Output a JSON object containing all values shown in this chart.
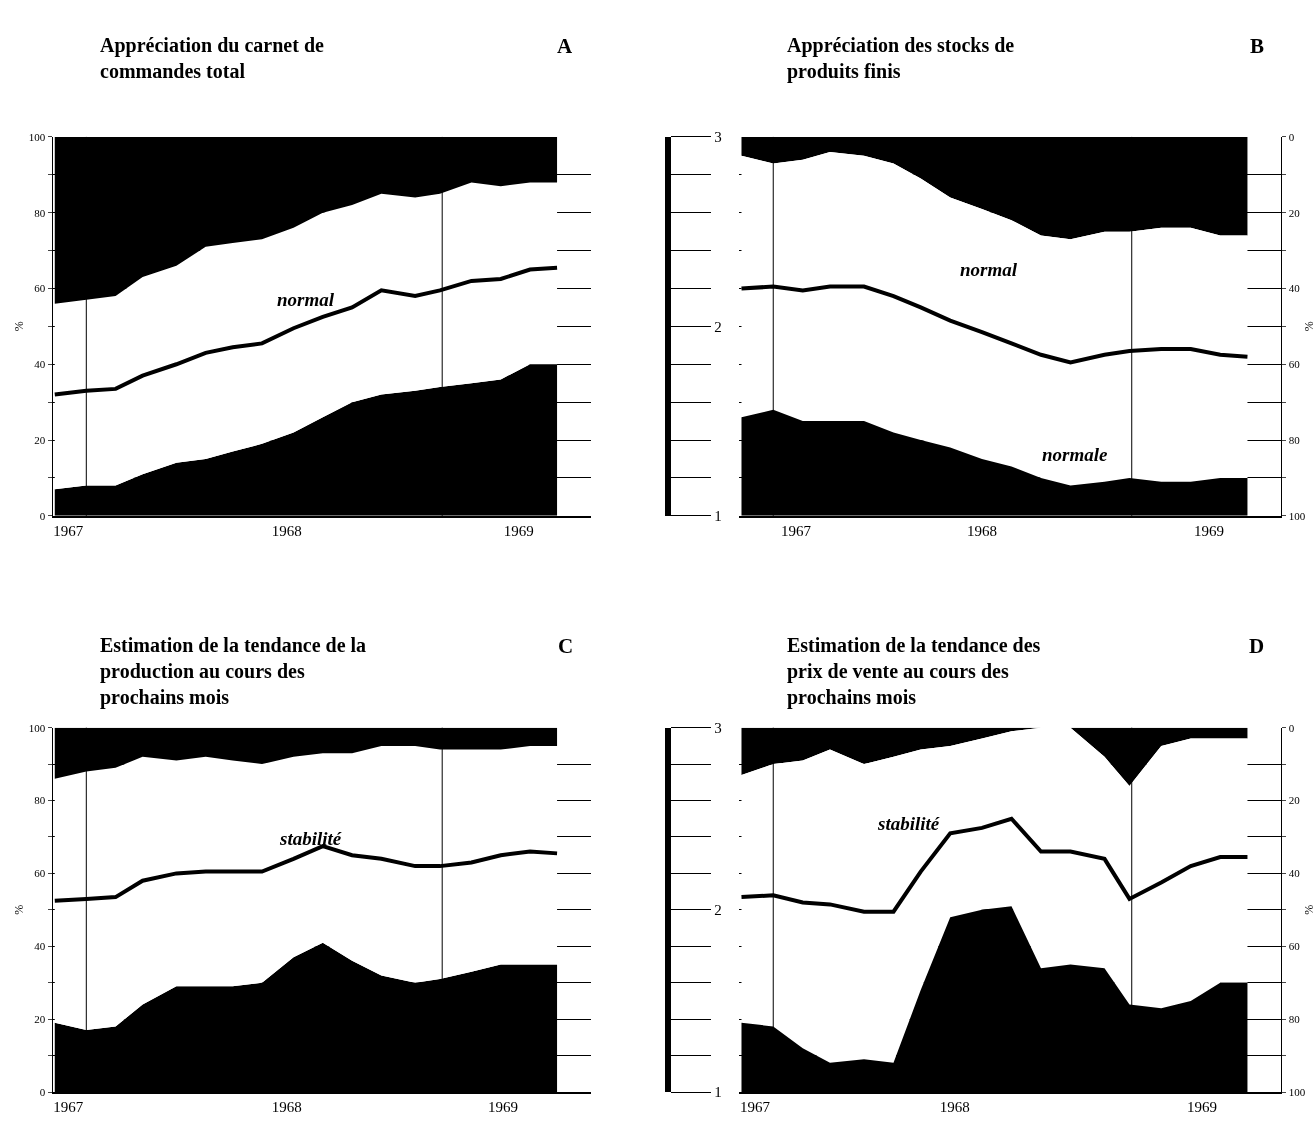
{
  "chart_data": [
    {
      "type": "area",
      "stacked": true,
      "title": "Appréciation du carnet de\ncommandes total",
      "ylabel": "%",
      "x": [
        1966.94,
        1967.08,
        1967.21,
        1967.33,
        1967.48,
        1967.61,
        1967.73,
        1967.86,
        1968.0,
        1968.13,
        1968.26,
        1968.39,
        1968.54,
        1968.65,
        1968.79,
        1968.92,
        1969.05,
        1969.17
      ],
      "series": [
        {
          "color": "#000000",
          "values": [
            7,
            8,
            8,
            11,
            14,
            15,
            17,
            19,
            22,
            26,
            30,
            32,
            33,
            34,
            35,
            36,
            40,
            40
          ]
        },
        {
          "color": "#ffffff",
          "values": [
            49,
            49,
            50,
            52,
            52,
            56,
            55,
            54,
            54,
            54,
            52,
            53,
            51,
            51,
            53,
            51,
            48,
            48
          ]
        },
        {
          "color": "#000000",
          "values": [
            44,
            43,
            42,
            37,
            34,
            29,
            28,
            27,
            24,
            20,
            18,
            15,
            16,
            15,
            12,
            13,
            12,
            12
          ]
        },
        {
          "type": "line",
          "axis": "y2",
          "color": "#000000",
          "values": [
            1.64,
            1.66,
            1.67,
            1.74,
            1.8,
            1.86,
            1.89,
            1.91,
            1.99,
            2.05,
            2.1,
            2.19,
            2.16,
            2.19,
            2.24,
            2.25,
            2.3,
            2.31
          ]
        }
      ],
      "xlim": [
        1966.93,
        1969.32
      ],
      "xticks": [
        1967,
        {
          "value": 1967.97,
          "label": "1968"
        },
        1969
      ],
      "ylim": [
        0,
        100
      ],
      "yticks": [
        0,
        {
          "value": 10,
          "label": null
        },
        20,
        {
          "value": 30,
          "label": null
        },
        40,
        {
          "value": 50,
          "label": null
        },
        60,
        {
          "value": 70,
          "label": null
        },
        80,
        {
          "value": 90,
          "label": null
        },
        100
      ],
      "y2lim": [
        1,
        3
      ],
      "y2ticks": [
        1,
        {
          "value": 1.2,
          "label": null
        },
        {
          "value": 1.4,
          "label": null
        },
        {
          "value": 1.6,
          "label": null
        },
        {
          "value": 1.8,
          "label": null
        },
        2,
        {
          "value": 2.2,
          "label": null
        },
        {
          "value": 2.4,
          "label": null
        },
        {
          "value": 2.6,
          "label": null
        },
        {
          "value": 2.8,
          "label": null
        },
        3
      ],
      "ref_lines": [
        {
          "axis": "x",
          "value": 1967.08
        },
        {
          "axis": "x",
          "value": 1968.66
        }
      ],
      "annotations": [
        "A",
        "normal"
      ],
      "grid": "y",
      "marker": "none",
      "line_style": "solid"
    },
    {
      "type": "area",
      "stacked": true,
      "title": "Appréciation des stocks de\nproduits finis",
      "ylabel": "%",
      "x": [
        1966.94,
        1967.08,
        1967.21,
        1967.33,
        1967.48,
        1967.61,
        1967.73,
        1967.86,
        1968.0,
        1968.13,
        1968.26,
        1968.39,
        1968.54,
        1968.65,
        1968.79,
        1968.92,
        1969.05,
        1969.17
      ],
      "series": [
        {
          "color": "#000000",
          "values": [
            5,
            7,
            6,
            4,
            5,
            7,
            11,
            16,
            19,
            22,
            26,
            27,
            25,
            25,
            24,
            24,
            26,
            26
          ]
        },
        {
          "color": "#ffffff",
          "values": [
            69,
            65,
            69,
            71,
            70,
            71,
            69,
            66,
            66,
            65,
            64,
            65,
            66,
            65,
            67,
            67,
            64,
            64
          ]
        },
        {
          "color": "#000000",
          "values": [
            26,
            28,
            25,
            25,
            25,
            22,
            20,
            18,
            15,
            13,
            10,
            8,
            9,
            10,
            9,
            9,
            10,
            10
          ]
        },
        {
          "type": "line",
          "axis": "y2",
          "color": "#000000",
          "values": [
            2.2,
            2.21,
            2.19,
            2.21,
            2.21,
            2.16,
            2.1,
            2.03,
            1.97,
            1.91,
            1.85,
            1.81,
            1.85,
            1.87,
            1.88,
            1.88,
            1.85,
            1.84
          ]
        }
      ],
      "xlim": [
        1966.93,
        1969.32
      ],
      "xticks": [
        {
          "value": 1967.18,
          "label": "1967"
        },
        1968,
        1969
      ],
      "ylim": [
        100,
        0
      ],
      "yticks": [
        0,
        {
          "value": 10,
          "label": null
        },
        20,
        {
          "value": 30,
          "label": null
        },
        40,
        {
          "value": 50,
          "label": null
        },
        60,
        {
          "value": 70,
          "label": null
        },
        80,
        {
          "value": 90,
          "label": null
        },
        100
      ],
      "y2lim": [
        1,
        3
      ],
      "ref_lines": [
        {
          "axis": "x",
          "value": 1967.08
        },
        {
          "axis": "x",
          "value": 1968.66
        }
      ],
      "annotations": [
        "B",
        "normal",
        "normale"
      ],
      "grid": "y",
      "marker": "none",
      "line_style": "solid"
    },
    {
      "type": "area",
      "stacked": true,
      "title": "Estimation de la tendance de la\nproduction au cours des\nprochains mois",
      "ylabel": "%",
      "x": [
        1966.94,
        1967.08,
        1967.21,
        1967.33,
        1967.48,
        1967.61,
        1967.73,
        1967.86,
        1968.0,
        1968.13,
        1968.26,
        1968.39,
        1968.54,
        1968.65,
        1968.79,
        1968.92,
        1969.05,
        1969.17
      ],
      "series": [
        {
          "color": "#000000",
          "values": [
            19,
            17,
            18,
            24,
            29,
            29,
            29,
            30,
            37,
            41,
            36,
            32,
            30,
            31,
            33,
            35,
            35,
            35
          ]
        },
        {
          "color": "#ffffff",
          "values": [
            67,
            71,
            71,
            68,
            62,
            63,
            62,
            60,
            55,
            52,
            57,
            63,
            65,
            63,
            61,
            59,
            60,
            60
          ]
        },
        {
          "color": "#000000",
          "values": [
            14,
            12,
            11,
            8,
            9,
            8,
            9,
            10,
            8,
            7,
            7,
            5,
            5,
            6,
            6,
            6,
            5,
            5
          ]
        },
        {
          "type": "line",
          "axis": "y2",
          "color": "#000000",
          "values": [
            2.05,
            2.06,
            2.07,
            2.16,
            2.2,
            2.21,
            2.21,
            2.21,
            2.28,
            2.35,
            2.3,
            2.28,
            2.24,
            2.24,
            2.26,
            2.3,
            2.32,
            2.31
          ]
        }
      ],
      "xlim": [
        1966.93,
        1969.32
      ],
      "xticks": [
        1967,
        {
          "value": 1967.97,
          "label": "1968"
        },
        {
          "value": 1968.93,
          "label": "1969"
        }
      ],
      "ylim": [
        0,
        100
      ],
      "yticks": [
        0,
        {
          "value": 10,
          "label": null
        },
        20,
        {
          "value": 30,
          "label": null
        },
        40,
        {
          "value": 50,
          "label": null
        },
        60,
        {
          "value": 70,
          "label": null
        },
        80,
        {
          "value": 90,
          "label": null
        },
        100
      ],
      "y2lim": [
        1,
        3
      ],
      "y2ticks": [
        1,
        {
          "value": 1.2,
          "label": null
        },
        {
          "value": 1.4,
          "label": null
        },
        {
          "value": 1.6,
          "label": null
        },
        {
          "value": 1.8,
          "label": null
        },
        2,
        {
          "value": 2.2,
          "label": null
        },
        {
          "value": 2.4,
          "label": null
        },
        {
          "value": 2.6,
          "label": null
        },
        {
          "value": 2.8,
          "label": null
        },
        3
      ],
      "ref_lines": [
        {
          "axis": "x",
          "value": 1967.08
        },
        {
          "axis": "x",
          "value": 1968.66
        }
      ],
      "annotations": [
        "C",
        "stabilité"
      ],
      "grid": "y",
      "marker": "none",
      "line_style": "solid"
    },
    {
      "type": "area",
      "stacked": true,
      "title": "Estimation de la tendance des\nprix de vente au cours des\nprochains mois",
      "ylabel": "%",
      "x": [
        1966.94,
        1967.08,
        1967.21,
        1967.33,
        1967.48,
        1967.61,
        1967.73,
        1967.86,
        1968.0,
        1968.13,
        1968.26,
        1968.39,
        1968.54,
        1968.65,
        1968.79,
        1968.92,
        1969.05,
        1969.17
      ],
      "series": [
        {
          "color": "#000000",
          "values": [
            13,
            10,
            9,
            6,
            10,
            8,
            6,
            5,
            3,
            1,
            0,
            0,
            8,
            16,
            5,
            3,
            3,
            3
          ]
        },
        {
          "color": "#ffffff",
          "values": [
            68,
            72,
            79,
            86,
            81,
            84,
            66,
            47,
            47,
            48,
            66,
            65,
            58,
            60,
            72,
            72,
            67,
            67
          ]
        },
        {
          "color": "#000000",
          "values": [
            19,
            18,
            12,
            8,
            9,
            8,
            28,
            48,
            50,
            51,
            34,
            35,
            34,
            24,
            23,
            25,
            30,
            30
          ]
        },
        {
          "type": "line",
          "axis": "y2",
          "color": "#000000",
          "values": [
            2.07,
            2.08,
            2.04,
            2.03,
            1.99,
            1.99,
            2.21,
            2.42,
            2.45,
            2.5,
            2.32,
            2.32,
            2.28,
            2.06,
            2.15,
            2.24,
            2.29,
            2.29
          ]
        }
      ],
      "xlim": [
        1966.93,
        1969.32
      ],
      "xticks": [
        1967,
        {
          "value": 1967.88,
          "label": "1968"
        },
        {
          "value": 1968.97,
          "label": "1969"
        }
      ],
      "ylim": [
        100,
        0
      ],
      "yticks": [
        0,
        {
          "value": 10,
          "label": null
        },
        20,
        {
          "value": 30,
          "label": null
        },
        40,
        {
          "value": 50,
          "label": null
        },
        60,
        {
          "value": 70,
          "label": null
        },
        80,
        {
          "value": 90,
          "label": null
        },
        100
      ],
      "y2lim": [
        1,
        3
      ],
      "ref_lines": [
        {
          "axis": "x",
          "value": 1967.08
        },
        {
          "axis": "x",
          "value": 1968.66
        }
      ],
      "annotations": [
        "D",
        "stabilité"
      ],
      "grid": "y",
      "marker": "none",
      "line_style": "solid"
    }
  ]
}
